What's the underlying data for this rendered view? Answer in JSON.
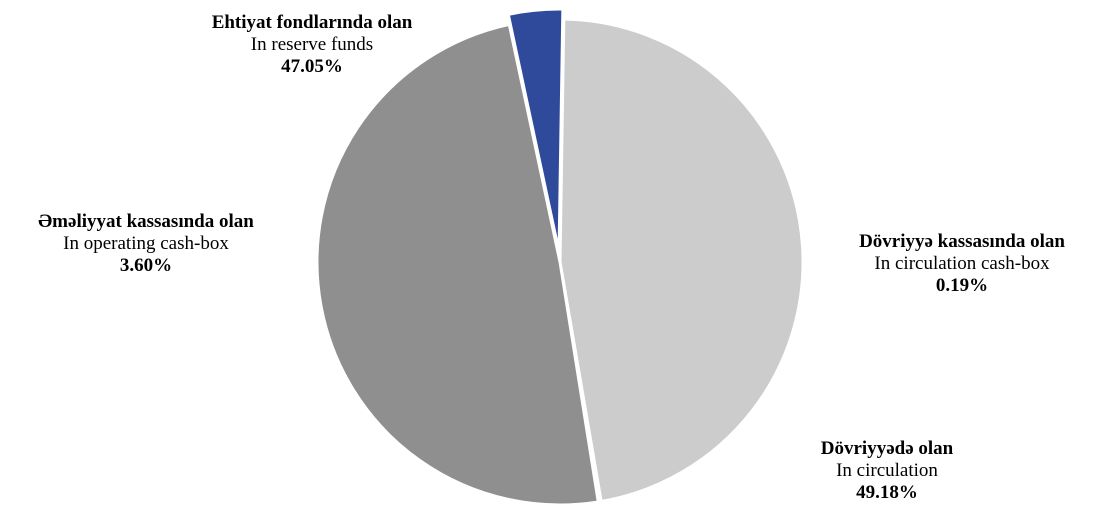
{
  "chart_data": {
    "type": "pie",
    "slices": [
      {
        "label": "Ehtiyat fondlarında olan",
        "label_en": "In reserve funds",
        "value": 47.05,
        "value_text": "47.05%",
        "color": "#cccccc"
      },
      {
        "label": "Dövriyyə kassasında olan",
        "label_en": "In circulation cash-box",
        "value": 0.19,
        "value_text": "0.19%",
        "color": "#a4a8d6"
      },
      {
        "label": "Dövriyyədə olan",
        "label_en": "In circulation",
        "value": 49.18,
        "value_text": "49.18%",
        "color": "#8f8f8f"
      },
      {
        "label": "Əməliyyat kassasında olan",
        "label_en": "In operating cash-box",
        "value": 3.6,
        "value_text": "3.60%",
        "color": "#2f4a9a"
      }
    ],
    "exploded": [
      "Dövriyyə kassasında olan",
      "Əməliyyat kassasında olan"
    ],
    "legend": "none"
  }
}
